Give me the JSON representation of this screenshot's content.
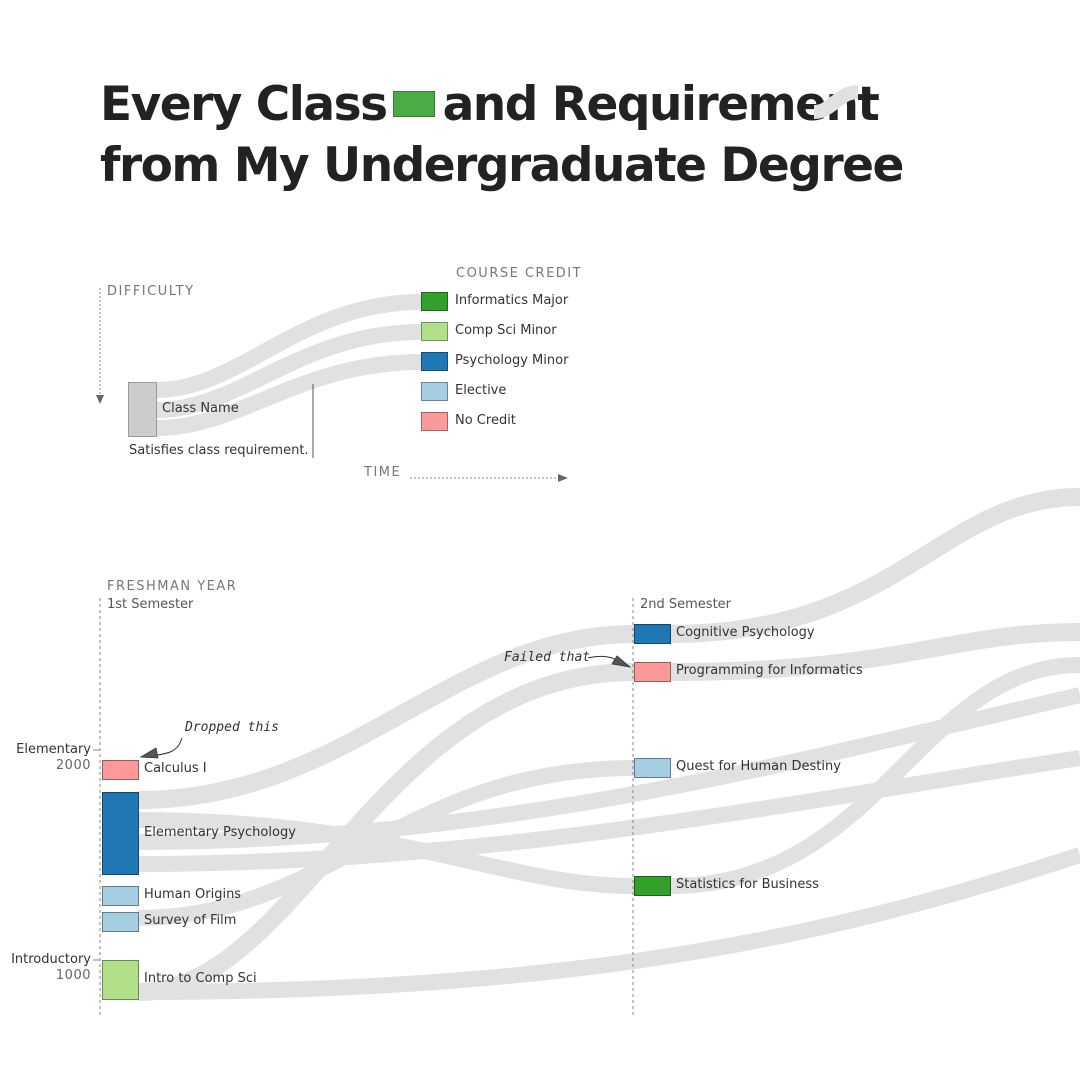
{
  "title": {
    "line1_part1": "Every Class",
    "line1_part2": "and Requirement",
    "line2": "from My Undergraduate Degree"
  },
  "legend": {
    "difficulty_label": "DIFFICULTY",
    "course_credit_label": "COURSE CREDIT",
    "time_label": "TIME",
    "example_class_name": "Class Name",
    "example_requirement": "Satisfies class requirement.",
    "credit_types": [
      {
        "key": "informatics",
        "label": "Informatics Major",
        "color": "#33a02c"
      },
      {
        "key": "compsci",
        "label": "Comp Sci Minor",
        "color": "#b2df8a"
      },
      {
        "key": "psych",
        "label": "Psychology Minor",
        "color": "#1f78b4"
      },
      {
        "key": "elective",
        "label": "Elective",
        "color": "#a6cee3"
      },
      {
        "key": "nocredit",
        "label": "No Credit",
        "color": "#fb9a99"
      }
    ]
  },
  "year": {
    "label": "FRESHMAN YEAR",
    "semesters": [
      "1st Semester",
      "2nd Semester"
    ]
  },
  "difficulty_levels": [
    {
      "name": "Elementary",
      "value": "2000"
    },
    {
      "name": "Introductory",
      "value": "1000"
    }
  ],
  "classes": {
    "semester1": [
      {
        "name": "Calculus I",
        "credit": "nocredit"
      },
      {
        "name": "Elementary Psychology",
        "credit": "psych"
      },
      {
        "name": "Human Origins",
        "credit": "elective"
      },
      {
        "name": "Survey of Film",
        "credit": "elective"
      },
      {
        "name": "Intro to Comp Sci",
        "credit": "compsci"
      }
    ],
    "semester2": [
      {
        "name": "Cognitive Psychology",
        "credit": "psych"
      },
      {
        "name": "Programming for Informatics",
        "credit": "nocredit"
      },
      {
        "name": "Quest for Human Destiny",
        "credit": "elective"
      },
      {
        "name": "Statistics for Business",
        "credit": "informatics"
      }
    ]
  },
  "annotations": {
    "dropped": "Dropped this",
    "failed": "Failed that"
  },
  "colors": {
    "ribbon": "#e1e1e1",
    "placeholder_box": "#cccccc"
  }
}
